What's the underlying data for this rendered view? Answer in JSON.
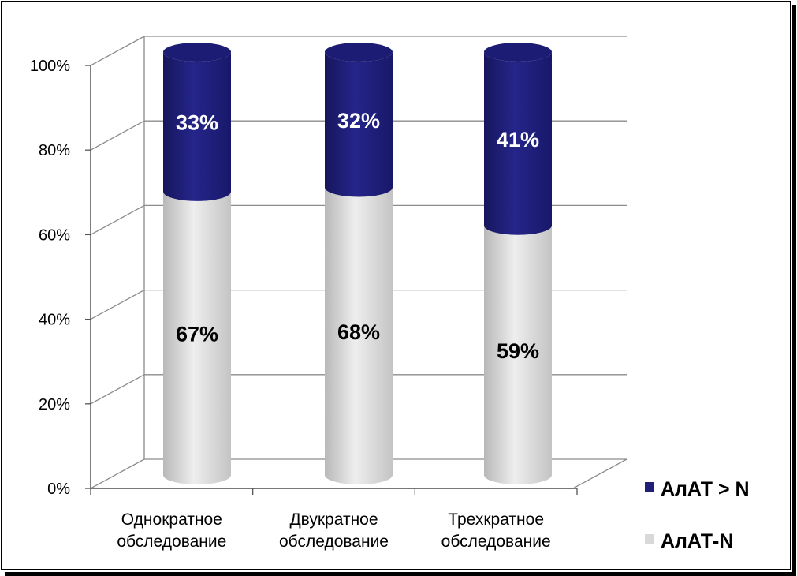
{
  "chart_data": {
    "type": "bar",
    "stacked": true,
    "shape": "cylinder-3d",
    "categories": [
      [
        "Однократное",
        "обследование"
      ],
      [
        "Двукратное",
        "обследование"
      ],
      [
        "Трехкратное",
        "обследование"
      ]
    ],
    "series": [
      {
        "name": "АлАТ-N",
        "values": [
          67,
          68,
          59
        ],
        "labels": [
          "67%",
          "68%",
          "59%"
        ],
        "color": "#d9d9d9"
      },
      {
        "name": "АлАТ > N",
        "values": [
          33,
          32,
          41
        ],
        "labels": [
          "33%",
          "32%",
          "41%"
        ],
        "color": "#1f1f78"
      }
    ],
    "ylim": [
      0,
      100
    ],
    "yticks": [
      "0%",
      "20%",
      "40%",
      "60%",
      "80%",
      "100%"
    ],
    "grid": true,
    "legend": {
      "position": "right",
      "entries": [
        "АлАТ > N",
        "АлАТ-N"
      ]
    }
  }
}
